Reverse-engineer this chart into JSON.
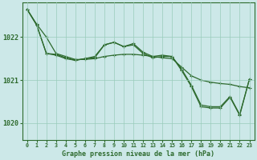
{
  "xlabel": "Graphe pression niveau de la mer (hPa)",
  "xlim": [
    -0.5,
    23.5
  ],
  "ylim": [
    1019.6,
    1022.8
  ],
  "yticks": [
    1020,
    1021,
    1022
  ],
  "xticks": [
    0,
    1,
    2,
    3,
    4,
    5,
    6,
    7,
    8,
    9,
    10,
    11,
    12,
    13,
    14,
    15,
    16,
    17,
    18,
    19,
    20,
    21,
    22,
    23
  ],
  "bg_color": "#cce8e8",
  "grid_color": "#99ccbb",
  "line_color": "#2d6a2d",
  "line1": [
    1022.65,
    1022.3,
    1022.0,
    1021.62,
    1021.55,
    1021.48,
    1021.48,
    1021.5,
    1021.55,
    1021.58,
    1021.6,
    1021.6,
    1021.58,
    1021.55,
    1021.52,
    1021.5,
    1021.3,
    1021.1,
    1021.0,
    1020.95,
    1020.92,
    1020.9,
    1020.85,
    1020.82
  ],
  "line2": [
    1022.65,
    1022.28,
    1021.62,
    1021.58,
    1021.5,
    1021.46,
    1021.5,
    1021.55,
    1021.82,
    1021.88,
    1021.78,
    1021.85,
    1021.65,
    1021.55,
    1021.58,
    1021.55,
    1021.25,
    1020.88,
    1020.42,
    1020.38,
    1020.38,
    1020.62,
    1020.2,
    1021.02
  ],
  "line3": [
    1022.65,
    1022.28,
    1021.62,
    1021.6,
    1021.52,
    1021.46,
    1021.5,
    1021.52,
    1021.82,
    1021.88,
    1021.78,
    1021.82,
    1021.62,
    1021.52,
    1021.55,
    1021.55,
    1021.22,
    1020.85,
    1020.38,
    1020.35,
    1020.35,
    1020.6,
    1020.18,
    1021.02
  ]
}
